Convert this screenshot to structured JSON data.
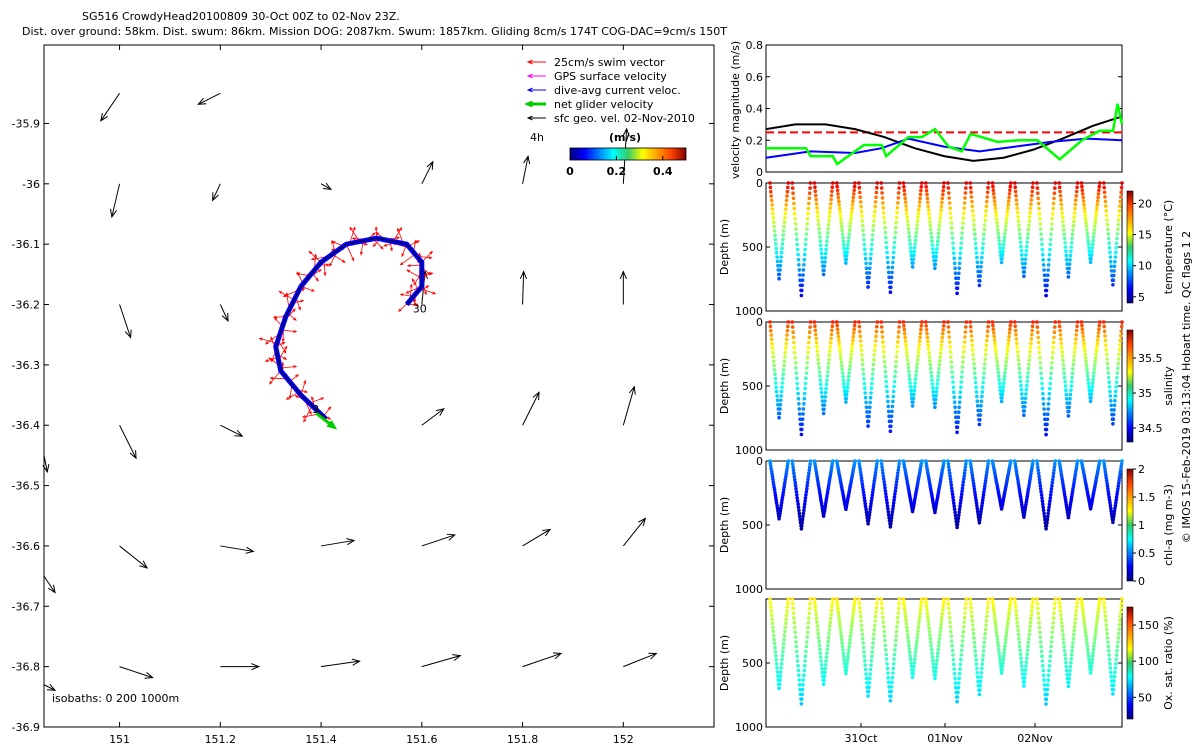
{
  "header": {
    "line1": "SG516 CrowdyHead20100809 30-Oct 00Z to 02-Nov 23Z.",
    "line2": "Dist. over ground: 58km. Dist. swum: 86km. Mission DOG: 2087km. Swum: 1857km. Gliding 8cm/s 174T COG-DAC=9cm/s 150T"
  },
  "chart_data": [
    {
      "type": "scatter",
      "name_hint": "map",
      "xlim": [
        150.85,
        152.18
      ],
      "ylim": [
        -36.9,
        -35.77
      ],
      "xticks": [
        151,
        151.2,
        151.4,
        151.6,
        151.8,
        152
      ],
      "xtick_labels": [
        "151",
        "151.2",
        "151.4",
        "151.6",
        "151.8",
        "152"
      ],
      "yticks": [
        -35.9,
        -36,
        -36.1,
        -36.2,
        -36.3,
        -36.4,
        -36.5,
        -36.6,
        -36.7,
        -36.8,
        -36.9
      ],
      "ytick_labels": [
        "-35.9",
        "-36",
        "-36.1",
        "-36.2",
        "-36.3",
        "-36.4",
        "-36.5",
        "-36.6",
        "-36.7",
        "-36.8",
        "-36.9"
      ],
      "legend": [
        {
          "label": "25cm/s swim vector",
          "color": "#ff0000"
        },
        {
          "label": "GPS surface velocity",
          "color": "#ff00ff"
        },
        {
          "label": "dive-avg current veloc.",
          "color": "#0000ff"
        },
        {
          "label": "net glider velocity",
          "color": "#00cc00"
        },
        {
          "label": "sfc geo. vel. 02-Nov-2010",
          "color": "#000000"
        }
      ],
      "legend_placement": "top-right",
      "scale_label": "4h",
      "colorbar_label": "(m/s)",
      "colorbar_ticks": [
        "0",
        "0.2",
        "0.4"
      ],
      "isobaths_label": "isobaths: 0   200  1000m",
      "track_labels": {
        "start": "30",
        "end": "3"
      },
      "track": [
        [
          151.57,
          -36.2
        ],
        [
          151.6,
          -36.17
        ],
        [
          151.6,
          -36.13
        ],
        [
          151.57,
          -36.1
        ],
        [
          151.51,
          -36.09
        ],
        [
          151.45,
          -36.1
        ],
        [
          151.4,
          -36.13
        ],
        [
          151.36,
          -36.17
        ],
        [
          151.33,
          -36.22
        ],
        [
          151.31,
          -36.27
        ],
        [
          151.32,
          -36.31
        ],
        [
          151.36,
          -36.35
        ],
        [
          151.41,
          -36.39
        ]
      ],
      "geo_vectors": [
        {
          "lon": 151.0,
          "lat": -35.85,
          "u": -0.17,
          "v": -0.25
        },
        {
          "lon": 151.2,
          "lat": -35.85,
          "u": -0.2,
          "v": -0.1
        },
        {
          "lon": 151.0,
          "lat": -36.0,
          "u": -0.07,
          "v": -0.3
        },
        {
          "lon": 151.2,
          "lat": -36.0,
          "u": -0.07,
          "v": -0.15
        },
        {
          "lon": 151.4,
          "lat": -36.0,
          "u": 0.09,
          "v": -0.05
        },
        {
          "lon": 151.6,
          "lat": -36.0,
          "u": 0.1,
          "v": 0.2
        },
        {
          "lon": 151.8,
          "lat": -36.0,
          "u": 0.05,
          "v": 0.25
        },
        {
          "lon": 152.0,
          "lat": -36.0,
          "u": 0.03,
          "v": 0.5
        },
        {
          "lon": 151.0,
          "lat": -36.2,
          "u": 0.1,
          "v": -0.3
        },
        {
          "lon": 151.2,
          "lat": -36.2,
          "u": 0.07,
          "v": -0.15
        },
        {
          "lon": 151.6,
          "lat": -36.2,
          "u": 0.03,
          "v": 0.3
        },
        {
          "lon": 151.8,
          "lat": -36.2,
          "u": 0.01,
          "v": 0.3
        },
        {
          "lon": 152.0,
          "lat": -36.2,
          "u": 0.0,
          "v": 0.3
        },
        {
          "lon": 151.0,
          "lat": -36.4,
          "u": 0.15,
          "v": -0.3
        },
        {
          "lon": 151.2,
          "lat": -36.4,
          "u": 0.2,
          "v": -0.1
        },
        {
          "lon": 151.6,
          "lat": -36.4,
          "u": 0.2,
          "v": 0.15
        },
        {
          "lon": 151.8,
          "lat": -36.4,
          "u": 0.15,
          "v": 0.3
        },
        {
          "lon": 152.0,
          "lat": -36.4,
          "u": 0.1,
          "v": 0.35
        },
        {
          "lon": 150.85,
          "lat": -36.45,
          "u": 0.03,
          "v": -0.15
        },
        {
          "lon": 151.0,
          "lat": -36.6,
          "u": 0.25,
          "v": -0.2
        },
        {
          "lon": 151.2,
          "lat": -36.6,
          "u": 0.3,
          "v": -0.05
        },
        {
          "lon": 151.4,
          "lat": -36.6,
          "u": 0.3,
          "v": 0.05
        },
        {
          "lon": 151.6,
          "lat": -36.6,
          "u": 0.3,
          "v": 0.1
        },
        {
          "lon": 151.8,
          "lat": -36.6,
          "u": 0.25,
          "v": 0.15
        },
        {
          "lon": 152.0,
          "lat": -36.6,
          "u": 0.2,
          "v": 0.25
        },
        {
          "lon": 150.85,
          "lat": -36.65,
          "u": 0.1,
          "v": -0.15
        },
        {
          "lon": 151.0,
          "lat": -36.8,
          "u": 0.3,
          "v": -0.1
        },
        {
          "lon": 151.2,
          "lat": -36.8,
          "u": 0.35,
          "v": 0.0
        },
        {
          "lon": 151.4,
          "lat": -36.8,
          "u": 0.35,
          "v": 0.05
        },
        {
          "lon": 151.6,
          "lat": -36.8,
          "u": 0.35,
          "v": 0.1
        },
        {
          "lon": 151.8,
          "lat": -36.8,
          "u": 0.35,
          "v": 0.12
        },
        {
          "lon": 152.0,
          "lat": -36.8,
          "u": 0.3,
          "v": 0.12
        },
        {
          "lon": 150.85,
          "lat": -36.83,
          "u": 0.1,
          "v": -0.05
        }
      ]
    },
    {
      "type": "line",
      "name_hint": "velocity",
      "ylabel": "velocity magnitude (m/s)",
      "ylim": [
        0,
        0.8
      ],
      "yticks": [
        0,
        0.2,
        0.4,
        0.6,
        0.8
      ],
      "ytick_labels": [
        "0",
        "0.2",
        "0.4",
        "0.6",
        "0.8"
      ],
      "xlim": [
        0,
        4
      ],
      "series": [
        {
          "color": "#ff0000",
          "dashed": true,
          "x": [
            0,
            4
          ],
          "values": [
            0.25,
            0.25
          ]
        },
        {
          "color": "#000000",
          "x": [
            0,
            0.33,
            0.67,
            1.0,
            1.33,
            1.67,
            2.0,
            2.33,
            2.67,
            3.0,
            3.33,
            3.67,
            4.0
          ],
          "values": [
            0.27,
            0.3,
            0.3,
            0.27,
            0.22,
            0.15,
            0.1,
            0.07,
            0.09,
            0.14,
            0.21,
            0.29,
            0.35
          ]
        },
        {
          "color": "#0000ff",
          "x": [
            0,
            0.5,
            1.0,
            1.3,
            1.6,
            2.0,
            2.4,
            2.8,
            3.2,
            3.6,
            4.0
          ],
          "values": [
            0.09,
            0.13,
            0.12,
            0.15,
            0.21,
            0.16,
            0.13,
            0.16,
            0.19,
            0.21,
            0.2
          ]
        },
        {
          "color": "#00ff00",
          "x": [
            0,
            0.45,
            0.5,
            0.75,
            0.8,
            1.1,
            1.3,
            1.35,
            1.6,
            1.75,
            1.9,
            2.05,
            2.2,
            2.3,
            2.6,
            2.85,
            3.05,
            3.3,
            3.55,
            3.75,
            3.9,
            3.95,
            4.0
          ],
          "values": [
            0.15,
            0.15,
            0.1,
            0.1,
            0.05,
            0.17,
            0.17,
            0.1,
            0.22,
            0.22,
            0.27,
            0.16,
            0.13,
            0.24,
            0.19,
            0.2,
            0.2,
            0.08,
            0.2,
            0.26,
            0.26,
            0.43,
            0.3
          ]
        }
      ]
    },
    {
      "type": "scatter",
      "name_hint": "temperature",
      "ylabel": "Depth (m)",
      "ylim": [
        1000,
        0
      ],
      "ytick_labels": [
        "0",
        "500",
        "1000"
      ],
      "colorbar_label": "temperature (°C)",
      "colorbar_ticks": [
        "5",
        "10",
        "15",
        "20"
      ],
      "colorbar_range": [
        4,
        22
      ],
      "cmap": "jet",
      "dives": 16,
      "max_depth": 880,
      "surface_value": 20.5,
      "bottom_value": 6
    },
    {
      "type": "scatter",
      "name_hint": "salinity",
      "ylabel": "Depth (m)",
      "ylim": [
        1000,
        0
      ],
      "ytick_labels": [
        "0",
        "500",
        "1000"
      ],
      "colorbar_label": "salinity",
      "colorbar_ticks": [
        "34.5",
        "35",
        "35.5"
      ],
      "colorbar_range": [
        34.3,
        35.9
      ],
      "cmap": "jet",
      "dives": 16,
      "max_depth": 880,
      "surface_value": 35.65,
      "bottom_value": 34.5
    },
    {
      "type": "scatter",
      "name_hint": "chla",
      "ylabel": "Depth (m)",
      "ylim": [
        1000,
        0
      ],
      "ytick_labels": [
        "0",
        "500",
        "1000"
      ],
      "colorbar_label": "chl-a (mg m-3)",
      "colorbar_ticks": [
        "0",
        "0.5",
        "1",
        "1.5",
        "2"
      ],
      "colorbar_range": [
        0,
        2
      ],
      "cmap": "jet",
      "dives": 16,
      "max_depth": 530,
      "surface_value": 0.55,
      "bottom_value": 0.05
    },
    {
      "type": "scatter",
      "name_hint": "oxygen",
      "ylabel": "Depth (m)",
      "ylim": [
        1000,
        0
      ],
      "ytick_labels": [
        "500",
        "1000"
      ],
      "xtick_labels": [
        "31Oct",
        "01Nov",
        "02Nov"
      ],
      "colorbar_label": "Ox. sat. ratio (%)",
      "colorbar_ticks": [
        "50",
        "100",
        "150"
      ],
      "colorbar_range": [
        20,
        175
      ],
      "cmap": "jet",
      "dives": 16,
      "max_depth": 820,
      "surface_value": 120,
      "bottom_value": 70
    }
  ],
  "side_note": "© IMOS 15-Feb-2019 03:13:04 Hobart time. QC flags 1  2",
  "colors": {
    "accent_red": "#ff0000",
    "accent_blue": "#0000ff",
    "accent_green": "#00ff00"
  }
}
